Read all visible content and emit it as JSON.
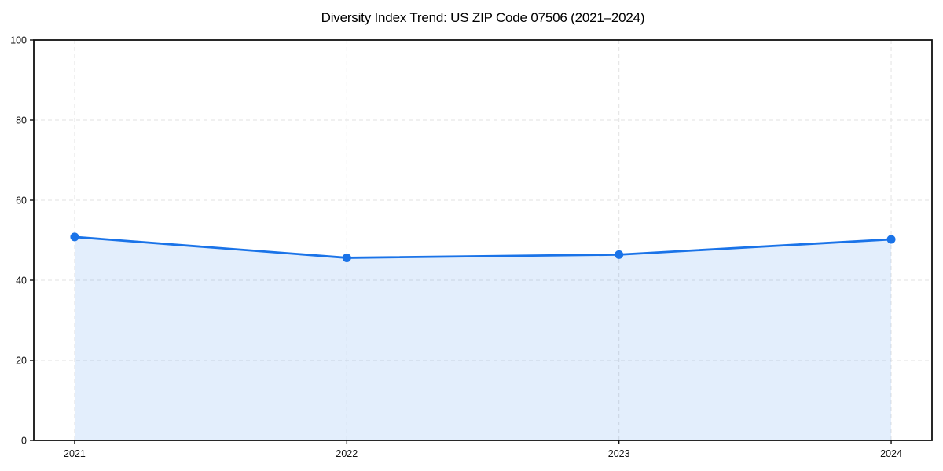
{
  "chart": {
    "title": "Diversity Index Trend: US ZIP Code 07506 (2021–2024)"
  },
  "chart_data": {
    "type": "line",
    "title": "Diversity Index Trend: US ZIP Code 07506 (2021–2024)",
    "categories": [
      "2021",
      "2022",
      "2023",
      "2024"
    ],
    "series": [
      {
        "name": "Diversity Index",
        "values": [
          50.8,
          45.6,
          46.4,
          50.2
        ]
      }
    ],
    "xlabel": "",
    "ylabel": "",
    "ylim": [
      0,
      100
    ],
    "yticks": [
      0,
      20,
      40,
      60,
      80,
      100
    ],
    "grid": true,
    "grid_style": "dashed",
    "legend": false,
    "area_fill": true,
    "markers": true,
    "colors": {
      "line": "#1a73e8",
      "marker": "#1a73e8",
      "fill": "#1a73e8",
      "fill_opacity": "0.12",
      "grid": "#e2e2e2",
      "axis": "#111111",
      "tick_label": "#111111"
    }
  }
}
